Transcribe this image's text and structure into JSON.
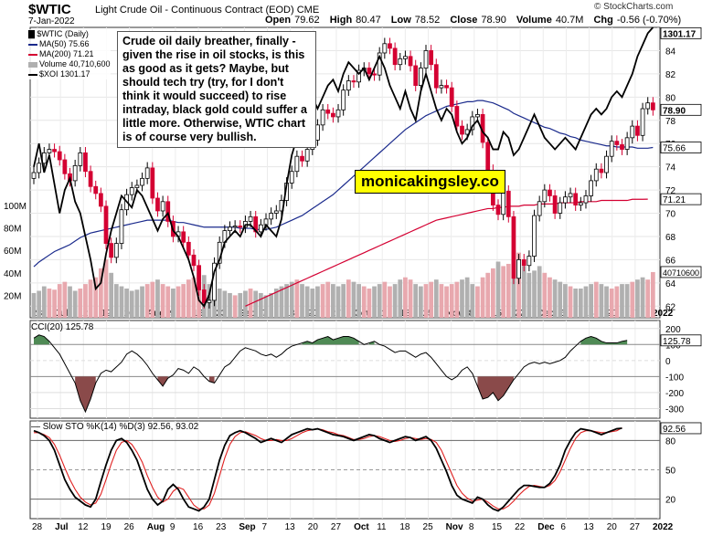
{
  "header": {
    "symbol": "$WTIC",
    "subtitle": "Light Crude Oil - Continuous Contract (EOD)",
    "exchange": "CME",
    "date": "7-Jan-2022",
    "watermark": "© StockCharts.com",
    "open_label": "Open",
    "open": "79.62",
    "high_label": "High",
    "high": "80.47",
    "low_label": "Low",
    "low": "78.52",
    "close_label": "Close",
    "close": "78.90",
    "volume_label": "Volume",
    "volume": "40.7M",
    "chg_label": "Chg",
    "chg": "-0.56 (-0.70%)"
  },
  "legend": {
    "series": "$WTIC (Daily)",
    "ma50": "MA(50) 75.66",
    "ma200": "MA(200) 71.21",
    "volume": "Volume 40,710,600",
    "xoi": "$XOI 1301.17"
  },
  "annotation": "Crude oil daily breather, finally - given the rise in oil stocks, is this as good as it gets? Maybe, but should tech try (try, for I don't think it would succeed) to rise intraday, black gold could suffer a little more. Otherwise, WTIC chart is of course very bullish.",
  "brand": "monicakingsley.co",
  "colors": {
    "up": "#000000",
    "down": "#d40032",
    "ma50": "#1a2a8c",
    "ma200": "#d40032",
    "xoi": "#000000",
    "volume_up": "#b0b0b0",
    "volume_down": "#e8a8ae",
    "cci_pos": "#4f8a55",
    "cci_neg": "#8a4a4a",
    "sto_k": "#000000",
    "sto_d": "#e02020"
  },
  "chart_data": [
    {
      "type": "candlestick",
      "title": "$WTIC (Daily)",
      "y_ticks": [
        62,
        64,
        66,
        68,
        70,
        72,
        74,
        76,
        78,
        80,
        82,
        84
      ],
      "ylim": [
        61,
        86
      ],
      "x_tick_labels": [
        "28",
        "Jul",
        "12",
        "19",
        "26",
        "Aug",
        "9",
        "16",
        "23",
        "Sep",
        "7",
        "13",
        "20",
        "27",
        "Oct",
        "11",
        "18",
        "25",
        "Nov",
        "8",
        "15",
        "22",
        "Dec",
        "6",
        "13",
        "20",
        "27",
        "2022"
      ],
      "volume_ticks": [
        "20M",
        "40M",
        "60M",
        "80M",
        "100M"
      ],
      "last_labels": {
        "xoi": "1301.17",
        "close": "78.90",
        "ma50": "75.66",
        "ma200": "71.21",
        "volume": "40710600"
      },
      "close": [
        73.5,
        74.3,
        75.2,
        75.5,
        75.3,
        74.6,
        73.4,
        72.8,
        74.1,
        75.2,
        73.6,
        72.3,
        71.7,
        70.6,
        67.4,
        66.2,
        67.4,
        70.3,
        71.6,
        72.2,
        72.4,
        73.0,
        73.9,
        71.3,
        70.2,
        71.0,
        69.3,
        68.0,
        68.4,
        67.5,
        66.4,
        65.5,
        63.4,
        62.3,
        62.5,
        65.7,
        67.5,
        68.5,
        68.8,
        68.9,
        68.8,
        69.3,
        69.7,
        68.4,
        69.0,
        69.5,
        70.0,
        70.2,
        71.1,
        72.6,
        73.6,
        74.9,
        74.5,
        75.5,
        76.3,
        77.6,
        78.9,
        78.6,
        78.3,
        78.9,
        80.6,
        81.4,
        81.3,
        82.3,
        82.5,
        82.0,
        81.9,
        83.8,
        84.6,
        84.2,
        82.8,
        83.3,
        83.5,
        82.7,
        81.0,
        82.5,
        84.0,
        82.8,
        80.8,
        81.0,
        80.8,
        79.2,
        77.5,
        76.8,
        77.2,
        78.3,
        78.5,
        76.1,
        73.7,
        70.7,
        69.9,
        71.9,
        69.7,
        64.4,
        66.0,
        65.5,
        66.3,
        69.8,
        71.0,
        72.0,
        71.5,
        70.0,
        70.9,
        71.4,
        71.7,
        70.7,
        70.9,
        71.5,
        72.8,
        73.8,
        73.5,
        74.9,
        76.2,
        75.9,
        75.5,
        76.5,
        77.5,
        76.7,
        79.0,
        79.5,
        78.9
      ],
      "ma50": [
        65.4,
        65.8,
        66.1,
        66.4,
        66.7,
        66.9,
        67.1,
        67.3,
        67.6,
        67.9,
        68.1,
        68.3,
        68.4,
        68.5,
        68.6,
        68.7,
        68.8,
        68.9,
        69.0,
        69.1,
        69.2,
        69.3,
        69.4,
        69.4,
        69.4,
        69.4,
        69.4,
        69.3,
        69.2,
        69.2,
        69.1,
        69.0,
        68.9,
        68.8,
        68.8,
        68.8,
        68.8,
        68.8,
        68.8,
        68.8,
        68.7,
        68.7,
        68.7,
        68.6,
        68.6,
        68.6,
        68.7,
        68.8,
        69.0,
        69.2,
        69.4,
        69.6,
        69.8,
        70.1,
        70.4,
        70.7,
        71.0,
        71.3,
        71.6,
        72.0,
        72.4,
        72.8,
        73.2,
        73.6,
        74.0,
        74.4,
        74.8,
        75.2,
        75.6,
        76.0,
        76.4,
        76.8,
        77.2,
        77.5,
        77.8,
        78.1,
        78.4,
        78.6,
        78.8,
        79.0,
        79.2,
        79.3,
        79.4,
        79.5,
        79.6,
        79.6,
        79.7,
        79.7,
        79.6,
        79.5,
        79.3,
        79.1,
        78.9,
        78.6,
        78.4,
        78.2,
        78.0,
        77.8,
        77.6,
        77.4,
        77.3,
        77.1,
        76.9,
        76.8,
        76.6,
        76.5,
        76.3,
        76.2,
        76.1,
        76.0,
        75.9,
        75.8,
        75.8,
        75.7,
        75.7,
        75.7,
        75.7,
        75.6,
        75.6,
        75.6,
        75.66
      ],
      "ma200": [
        null,
        null,
        null,
        null,
        null,
        null,
        null,
        null,
        null,
        null,
        null,
        null,
        null,
        null,
        null,
        null,
        null,
        null,
        null,
        null,
        null,
        null,
        null,
        null,
        null,
        null,
        null,
        null,
        null,
        null,
        null,
        null,
        null,
        null,
        null,
        null,
        null,
        null,
        null,
        null,
        null,
        62.0,
        62.2,
        62.4,
        62.6,
        62.8,
        63.0,
        63.2,
        63.4,
        63.6,
        63.8,
        64.0,
        64.2,
        64.4,
        64.6,
        64.8,
        65.0,
        65.2,
        65.4,
        65.6,
        65.8,
        66.0,
        66.2,
        66.4,
        66.6,
        66.8,
        67.0,
        67.2,
        67.4,
        67.6,
        67.8,
        68.0,
        68.2,
        68.4,
        68.6,
        68.8,
        69.0,
        69.2,
        69.4,
        69.5,
        69.6,
        69.7,
        69.8,
        69.9,
        70.0,
        70.1,
        70.2,
        70.3,
        70.4,
        70.4,
        70.5,
        70.5,
        70.6,
        70.6,
        70.6,
        70.7,
        70.7,
        70.7,
        70.8,
        70.8,
        70.8,
        70.8,
        70.9,
        70.9,
        70.9,
        70.9,
        71.0,
        71.0,
        71.0,
        71.0,
        71.1,
        71.1,
        71.1,
        71.1,
        71.1,
        71.1,
        71.2,
        71.2,
        71.2,
        71.21
      ],
      "xoi": [
        74.0,
        76.0,
        73.5,
        75.0,
        72.5,
        70.0,
        72.0,
        73.0,
        71.0,
        70.0,
        68.0,
        66.0,
        63.5,
        64.0,
        66.5,
        68.5,
        70.0,
        71.5,
        71.0,
        70.5,
        72.0,
        71.5,
        70.5,
        69.5,
        68.5,
        69.5,
        70.0,
        68.5,
        68.0,
        67.0,
        66.0,
        64.5,
        62.5,
        62.0,
        63.0,
        65.0,
        66.0,
        67.5,
        68.0,
        68.5,
        68.0,
        69.0,
        69.0,
        68.5,
        68.0,
        69.0,
        68.5,
        68.0,
        69.5,
        72.5,
        75.0,
        76.5,
        76.0,
        78.5,
        80.0,
        79.0,
        80.0,
        81.0,
        81.5,
        80.5,
        82.0,
        83.0,
        82.5,
        82.0,
        82.5,
        81.5,
        82.5,
        83.5,
        82.5,
        81.0,
        80.0,
        79.0,
        80.5,
        79.0,
        78.0,
        80.5,
        82.0,
        80.5,
        79.0,
        78.0,
        79.0,
        78.5,
        77.0,
        76.0,
        76.5,
        77.5,
        78.0,
        77.0,
        76.5,
        75.5,
        75.5,
        77.0,
        76.5,
        75.0,
        75.5,
        76.5,
        77.5,
        78.5,
        77.5,
        76.5,
        76.0,
        75.5,
        76.0,
        76.5,
        76.0,
        75.5,
        76.5,
        77.5,
        78.5,
        79.0,
        78.5,
        79.0,
        80.0,
        80.5,
        80.0,
        81.0,
        82.0,
        83.5,
        84.5,
        85.5,
        86.0
      ],
      "volume_m": [
        22,
        24,
        28,
        26,
        25,
        30,
        32,
        28,
        24,
        26,
        30,
        34,
        36,
        44,
        52,
        40,
        30,
        28,
        26,
        24,
        25,
        28,
        30,
        32,
        34,
        30,
        28,
        26,
        28,
        30,
        34,
        36,
        40,
        38,
        30,
        28,
        26,
        24,
        22,
        20,
        22,
        24,
        26,
        24,
        22,
        20,
        22,
        26,
        28,
        30,
        32,
        34,
        30,
        28,
        26,
        28,
        30,
        32,
        30,
        28,
        30,
        34,
        32,
        30,
        28,
        26,
        28,
        30,
        32,
        28,
        30,
        34,
        36,
        34,
        30,
        28,
        30,
        32,
        34,
        30,
        28,
        30,
        32,
        34,
        36,
        30,
        28,
        36,
        40,
        44,
        50,
        46,
        48,
        60,
        58,
        46,
        40,
        42,
        46,
        40,
        36,
        34,
        32,
        30,
        28,
        26,
        26,
        28,
        30,
        32,
        30,
        28,
        26,
        28,
        30,
        30,
        32,
        34,
        36,
        34,
        40.7
      ],
      "volume_up": [
        1,
        1,
        1,
        0,
        0,
        0,
        0,
        1,
        1,
        0,
        0,
        0,
        0,
        0,
        0,
        1,
        1,
        1,
        1,
        1,
        1,
        1,
        0,
        0,
        1,
        0,
        0,
        1,
        0,
        0,
        0,
        0,
        0,
        1,
        1,
        1,
        1,
        1,
        1,
        0,
        1,
        1,
        0,
        1,
        1,
        1,
        1,
        1,
        1,
        1,
        1,
        0,
        1,
        1,
        1,
        1,
        0,
        0,
        1,
        1,
        1,
        0,
        1,
        1,
        0,
        0,
        1,
        1,
        0,
        0,
        1,
        1,
        0,
        0,
        1,
        1,
        0,
        0,
        1,
        0,
        0,
        0,
        0,
        1,
        1,
        1,
        0,
        0,
        0,
        0,
        1,
        0,
        0,
        1,
        0,
        1,
        1,
        1,
        1,
        0,
        0,
        1,
        1,
        1,
        0,
        1,
        1,
        1,
        1,
        0,
        1,
        1,
        0,
        0,
        1,
        1,
        0,
        1,
        1,
        0
      ]
    },
    {
      "type": "line",
      "title": "CCI(20) 125.78",
      "y_ticks": [
        "200",
        "100",
        "0",
        "-100",
        "-200",
        "-300"
      ],
      "ylim": [
        -360,
        250
      ],
      "last_label": "125.78",
      "values": [
        140,
        160,
        150,
        120,
        80,
        40,
        -20,
        -80,
        -140,
        -250,
        -320,
        -240,
        -140,
        -80,
        -60,
        -70,
        -40,
        -10,
        40,
        60,
        40,
        10,
        -30,
        -80,
        -120,
        -160,
        -110,
        -90,
        -50,
        -60,
        -80,
        -40,
        -60,
        -100,
        -130,
        -140,
        -90,
        -40,
        -20,
        20,
        60,
        80,
        70,
        60,
        40,
        30,
        40,
        20,
        40,
        70,
        90,
        100,
        110,
        120,
        110,
        130,
        140,
        150,
        130,
        140,
        150,
        150,
        140,
        120,
        100,
        110,
        120,
        100,
        90,
        70,
        50,
        60,
        60,
        40,
        20,
        40,
        50,
        20,
        -20,
        -60,
        -100,
        -120,
        -100,
        -60,
        -40,
        -80,
        -160,
        -240,
        -230,
        -200,
        -250,
        -220,
        -170,
        -120,
        -80,
        -40,
        -20,
        -10,
        -20,
        -10,
        -20,
        -10,
        0,
        20,
        60,
        90,
        120,
        140,
        150,
        140,
        120,
        110,
        110,
        110,
        120,
        125.78
      ]
    },
    {
      "type": "line",
      "title": "Slow STO %K(14) %D(3) 92.56, 93.02",
      "y_ticks": [
        "80",
        "50",
        "20"
      ],
      "ylim": [
        0,
        100
      ],
      "last_label": "92.56",
      "k": [
        90,
        88,
        85,
        80,
        70,
        55,
        40,
        30,
        22,
        18,
        14,
        12,
        20,
        38,
        55,
        70,
        80,
        82,
        78,
        70,
        60,
        45,
        30,
        20,
        14,
        18,
        30,
        35,
        30,
        20,
        12,
        10,
        8,
        12,
        20,
        40,
        60,
        75,
        85,
        88,
        90,
        88,
        85,
        82,
        78,
        80,
        82,
        80,
        78,
        82,
        86,
        88,
        90,
        92,
        91,
        92,
        90,
        88,
        86,
        85,
        84,
        82,
        80,
        82,
        84,
        86,
        85,
        82,
        80,
        78,
        80,
        82,
        84,
        83,
        80,
        82,
        84,
        80,
        72,
        60,
        48,
        34,
        24,
        20,
        18,
        16,
        22,
        20,
        14,
        10,
        8,
        12,
        18,
        24,
        30,
        34,
        34,
        33,
        32,
        32,
        36,
        44,
        55,
        70,
        80,
        88,
        92,
        91,
        90,
        88,
        86,
        88,
        90,
        92,
        92.56
      ],
      "d": [
        88,
        88,
        86,
        83,
        76,
        65,
        52,
        40,
        30,
        22,
        17,
        14,
        16,
        25,
        40,
        56,
        70,
        78,
        80,
        76,
        68,
        58,
        44,
        32,
        22,
        17,
        20,
        28,
        32,
        30,
        22,
        14,
        10,
        10,
        14,
        26,
        44,
        62,
        76,
        84,
        88,
        89,
        87,
        85,
        82,
        80,
        80,
        81,
        80,
        80,
        82,
        85,
        88,
        90,
        91,
        92,
        91,
        89,
        88,
        86,
        85,
        83,
        81,
        81,
        82,
        84,
        85,
        84,
        82,
        80,
        79,
        80,
        82,
        83,
        82,
        81,
        82,
        81,
        78,
        70,
        58,
        46,
        34,
        26,
        21,
        18,
        19,
        20,
        17,
        13,
        10,
        10,
        13,
        18,
        24,
        29,
        33,
        34,
        33,
        32,
        34,
        39,
        48,
        60,
        72,
        82,
        88,
        90,
        90,
        89,
        88,
        88,
        89,
        90,
        93.02
      ]
    }
  ]
}
